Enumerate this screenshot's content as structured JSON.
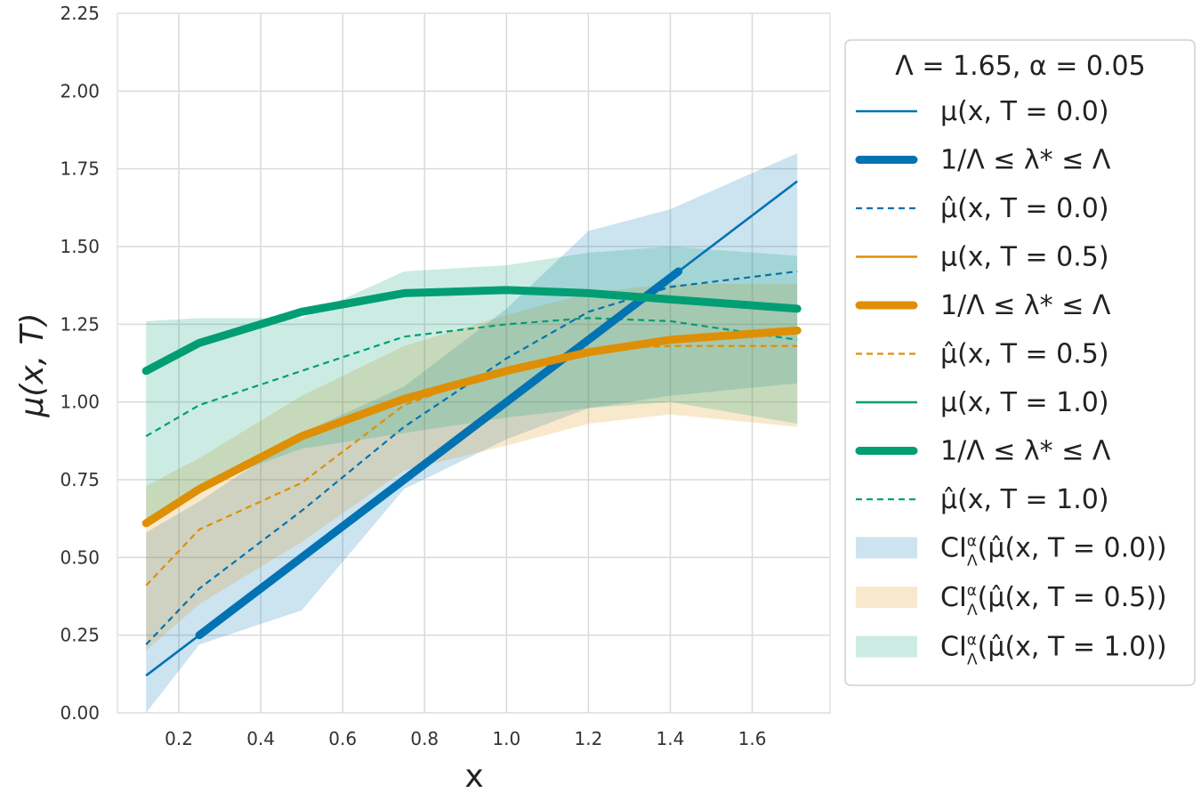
{
  "chart_data": {
    "type": "line",
    "title": "",
    "xlabel": "x",
    "ylabel": "μ(x, T)",
    "xlim": [
      0.05,
      1.79
    ],
    "ylim": [
      0,
      2.25
    ],
    "xticks": [
      0.2,
      0.4,
      0.6,
      0.8,
      1.0,
      1.2,
      1.4,
      1.6
    ],
    "xtick_labels": [
      "0.2",
      "0.4",
      "0.6",
      "0.8",
      "1.0",
      "1.2",
      "1.4",
      "1.6"
    ],
    "yticks": [
      0,
      0.25,
      0.5,
      0.75,
      1.0,
      1.25,
      1.5,
      1.75,
      2.0,
      2.25
    ],
    "ytick_labels": [
      "0.00",
      "0.25",
      "0.50",
      "0.75",
      "1.00",
      "1.25",
      "1.50",
      "1.75",
      "2.00",
      "2.25"
    ],
    "grid": true,
    "legend_title": "Λ = 1.65, α = 0.05",
    "legend_position": "right-outside",
    "colors": {
      "blue": "#0173b2",
      "orange": "#de8f05",
      "green": "#029e73"
    },
    "bands": [
      {
        "name": "CI^α_Λ(μ̂(x, T = 0.0))",
        "legend": "CI",
        "legend_sup": "α",
        "legend_sub": "Λ",
        "legend_rest": "(μ̂(x, T = 0.0))",
        "color": "#0173b2",
        "x": [
          0.12,
          0.25,
          0.5,
          0.75,
          1.0,
          1.2,
          1.4,
          1.71
        ],
        "upper": [
          0.58,
          0.68,
          0.9,
          1.05,
          1.3,
          1.55,
          1.62,
          1.8
        ],
        "lower": [
          0.0,
          0.22,
          0.33,
          0.72,
          0.88,
          0.98,
          1.02,
          1.06
        ]
      },
      {
        "name": "CI^α_Λ(μ̂(x, T = 0.5))",
        "legend": "CI",
        "legend_sup": "α",
        "legend_sub": "Λ",
        "legend_rest": "(μ̂(x, T = 0.5))",
        "color": "#de8f05",
        "x": [
          0.12,
          0.25,
          0.5,
          0.75,
          1.0,
          1.2,
          1.4,
          1.71
        ],
        "upper": [
          0.73,
          0.82,
          1.02,
          1.18,
          1.28,
          1.35,
          1.38,
          1.38
        ],
        "lower": [
          0.2,
          0.35,
          0.55,
          0.78,
          0.86,
          0.93,
          0.96,
          0.92
        ]
      },
      {
        "name": "CI^α_Λ(μ̂(x, T = 1.0))",
        "legend": "CI",
        "legend_sup": "α",
        "legend_sub": "Λ",
        "legend_rest": "(μ̂(x, T = 1.0))",
        "color": "#029e73",
        "x": [
          0.12,
          0.25,
          0.5,
          0.75,
          1.0,
          1.2,
          1.4,
          1.71
        ],
        "upper": [
          1.26,
          1.27,
          1.27,
          1.42,
          1.44,
          1.48,
          1.5,
          1.47
        ],
        "lower": [
          0.6,
          0.73,
          0.85,
          0.9,
          0.95,
          0.98,
          1.0,
          0.93
        ]
      }
    ],
    "series": [
      {
        "name": "μ(x, T = 0.0)",
        "style": "solid",
        "color": "#0173b2",
        "x": [
          0.12,
          1.71
        ],
        "y": [
          0.12,
          1.71
        ]
      },
      {
        "name": "1/Λ ≤ λ* ≤ Λ",
        "style": "thick",
        "color": "#0173b2",
        "x": [
          0.25,
          0.5,
          0.75,
          1.0,
          1.2,
          1.42
        ],
        "y": [
          0.25,
          0.5,
          0.75,
          1.0,
          1.2,
          1.42
        ]
      },
      {
        "name": "μ̂(x, T = 0.0)",
        "style": "dashed",
        "color": "#0173b2",
        "x": [
          0.12,
          0.25,
          0.5,
          0.75,
          1.0,
          1.2,
          1.4,
          1.71
        ],
        "y": [
          0.22,
          0.4,
          0.65,
          0.92,
          1.14,
          1.29,
          1.37,
          1.42
        ]
      },
      {
        "name": "μ(x, T = 0.5)",
        "style": "solid",
        "color": "#de8f05",
        "x": [
          0.12,
          0.25,
          0.5,
          0.75,
          1.0,
          1.2,
          1.4,
          1.71
        ],
        "y": [
          0.61,
          0.72,
          0.89,
          1.01,
          1.1,
          1.16,
          1.2,
          1.23
        ]
      },
      {
        "name": "1/Λ ≤ λ* ≤ Λ",
        "style": "thick",
        "color": "#de8f05",
        "x": [
          0.12,
          0.25,
          0.5,
          0.75,
          1.0,
          1.2,
          1.4,
          1.71
        ],
        "y": [
          0.61,
          0.72,
          0.89,
          1.01,
          1.1,
          1.16,
          1.2,
          1.23
        ]
      },
      {
        "name": "μ̂(x, T = 0.5)",
        "style": "dashed",
        "color": "#de8f05",
        "x": [
          0.12,
          0.25,
          0.5,
          0.75,
          1.0,
          1.2,
          1.4,
          1.71
        ],
        "y": [
          0.41,
          0.59,
          0.74,
          0.99,
          1.11,
          1.17,
          1.18,
          1.18
        ]
      },
      {
        "name": "μ(x, T = 1.0)",
        "style": "solid",
        "color": "#029e73",
        "x": [
          0.12,
          0.25,
          0.5,
          0.75,
          1.0,
          1.2,
          1.4,
          1.71
        ],
        "y": [
          1.1,
          1.19,
          1.29,
          1.35,
          1.36,
          1.35,
          1.33,
          1.3
        ]
      },
      {
        "name": "1/Λ ≤ λ* ≤ Λ",
        "style": "thick",
        "color": "#029e73",
        "x": [
          0.12,
          0.25,
          0.5,
          0.75,
          1.0,
          1.2,
          1.4,
          1.71
        ],
        "y": [
          1.1,
          1.19,
          1.29,
          1.35,
          1.36,
          1.35,
          1.33,
          1.3
        ]
      },
      {
        "name": "μ̂(x, T = 1.0)",
        "style": "dashed",
        "color": "#029e73",
        "x": [
          0.12,
          0.25,
          0.5,
          0.75,
          1.0,
          1.2,
          1.4,
          1.71
        ],
        "y": [
          0.89,
          0.99,
          1.1,
          1.21,
          1.25,
          1.27,
          1.26,
          1.2
        ]
      }
    ]
  }
}
